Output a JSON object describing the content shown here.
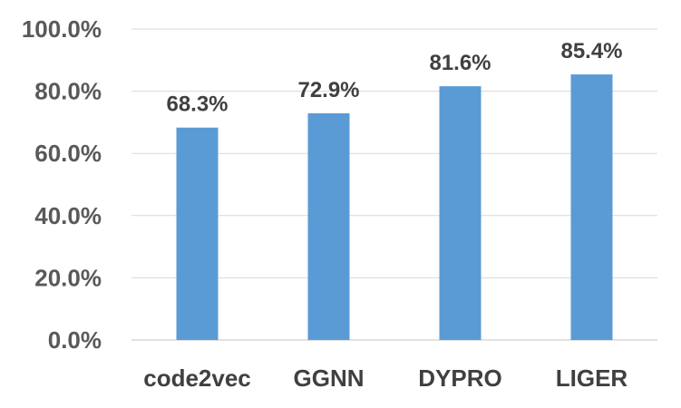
{
  "chart_data": {
    "type": "bar",
    "title": "",
    "xlabel": "",
    "ylabel": "",
    "categories": [
      "code2vec",
      "GGNN",
      "DYPRO",
      "LIGER"
    ],
    "values": [
      68.3,
      72.9,
      81.6,
      85.4
    ],
    "data_labels": [
      "68.3%",
      "72.9%",
      "81.6%",
      "85.4%"
    ],
    "ylim": [
      0,
      100
    ],
    "yticks": [
      0,
      20,
      40,
      60,
      80,
      100
    ],
    "ytick_labels": [
      "0.0%",
      "20.0%",
      "40.0%",
      "60.0%",
      "80.0%",
      "100.0%"
    ],
    "grid": true,
    "legend": "none",
    "bar_color": "#5b9bd5"
  }
}
